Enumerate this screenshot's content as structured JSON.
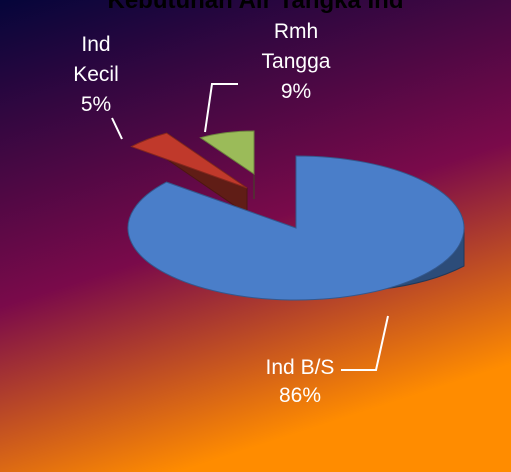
{
  "chart_data": {
    "type": "pie",
    "title": "Kebutuhan Air Tangka Ind",
    "categories": [
      "Ind B/S",
      "Ind Kecil",
      "Rmh Tangga"
    ],
    "values": [
      86,
      5,
      9
    ],
    "label_lines": [
      [
        "Ind B/S",
        "86%"
      ],
      [
        "Ind",
        "Kecil",
        "5%"
      ],
      [
        "Rmh",
        "Tangga",
        "9%"
      ]
    ],
    "exploded": true,
    "three_d": true,
    "legend": "none"
  },
  "colors": {
    "ind_bs": "#4a7ec9",
    "ind_kecil": "#c0392b",
    "rmh_tangga": "#9bbb59",
    "background_top": "#05053a",
    "background_mid": "#7a0a4a",
    "background_bottom": "#ff8c00"
  }
}
